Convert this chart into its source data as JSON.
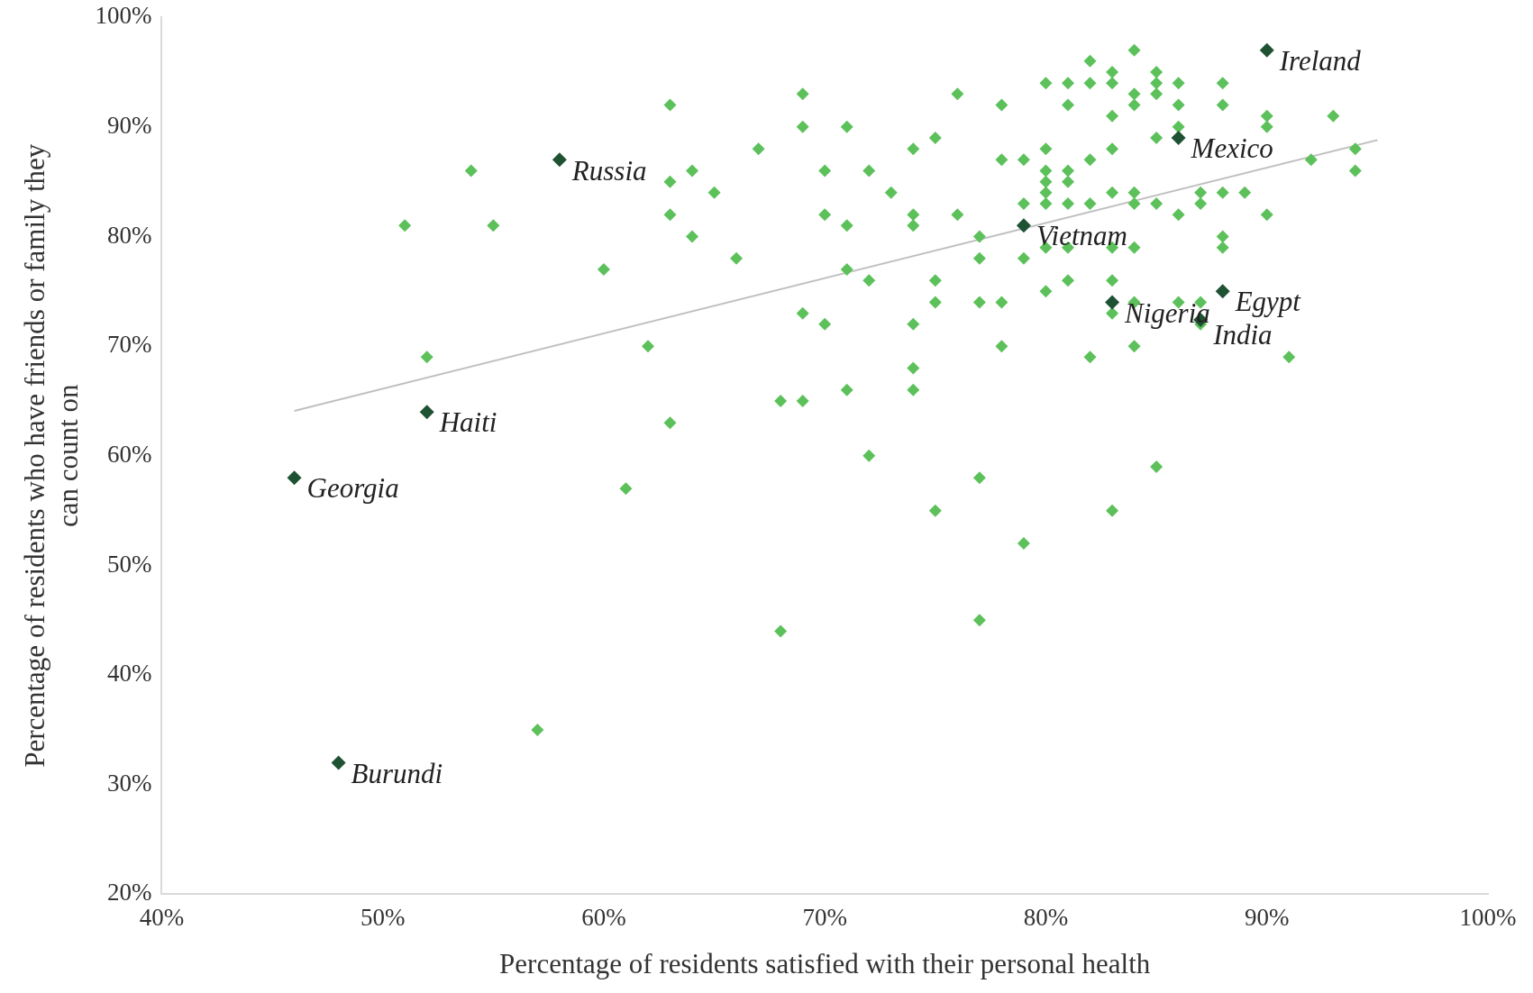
{
  "chart_data": {
    "type": "scatter",
    "xlabel": "Percentage of residents satisfied with their personal health",
    "ylabel": "Percentage of residents who have friends or family they can count on",
    "marker": "diamond",
    "xlim": [
      40,
      100
    ],
    "ylim": [
      20,
      100
    ],
    "xticks": [
      {
        "value": 40,
        "label": "40%"
      },
      {
        "value": 50,
        "label": "50%"
      },
      {
        "value": 60,
        "label": "60%"
      },
      {
        "value": 70,
        "label": "70%"
      },
      {
        "value": 80,
        "label": "80%"
      },
      {
        "value": 90,
        "label": "90%"
      },
      {
        "value": 100,
        "label": "100%"
      }
    ],
    "yticks": [
      {
        "value": 20,
        "label": "20%"
      },
      {
        "value": 30,
        "label": "30%"
      },
      {
        "value": 40,
        "label": "40%"
      },
      {
        "value": 50,
        "label": "50%"
      },
      {
        "value": 60,
        "label": "60%"
      },
      {
        "value": 70,
        "label": "70%"
      },
      {
        "value": 80,
        "label": "80%"
      },
      {
        "value": 90,
        "label": "90%"
      },
      {
        "value": 100,
        "label": "100%"
      }
    ],
    "series": [
      {
        "color": "#5cc15a",
        "x": [
          51,
          52,
          54,
          55,
          57,
          60,
          61,
          62,
          63,
          63,
          63,
          63,
          64,
          64,
          65,
          66,
          67,
          68,
          68,
          69,
          69,
          69,
          69,
          70,
          70,
          70,
          71,
          71,
          71,
          71,
          72,
          72,
          72,
          73,
          74,
          74,
          74,
          74,
          74,
          74,
          75,
          75,
          75,
          75,
          76,
          76,
          77,
          77,
          77,
          77,
          77,
          78,
          78,
          78,
          78,
          79,
          79,
          79,
          79,
          80,
          80,
          80,
          80,
          80,
          80,
          80,
          80,
          81,
          81,
          81,
          81,
          81,
          81,
          81,
          82,
          82,
          82,
          82,
          82,
          83,
          83,
          83,
          83,
          83,
          83,
          83,
          83,
          83,
          84,
          84,
          84,
          84,
          84,
          84,
          84,
          84,
          85,
          85,
          85,
          85,
          85,
          85,
          86,
          86,
          86,
          86,
          86,
          87,
          87,
          87,
          87,
          88,
          88,
          88,
          88,
          88,
          89,
          90,
          90,
          90,
          91,
          92,
          93,
          94,
          94
        ],
        "values": [
          81,
          69,
          86,
          81,
          35,
          77,
          57,
          70,
          92,
          85,
          82,
          63,
          86,
          80,
          84,
          78,
          88,
          65,
          44,
          93,
          90,
          73,
          65,
          86,
          82,
          72,
          90,
          81,
          77,
          66,
          86,
          76,
          60,
          84,
          88,
          82,
          81,
          72,
          68,
          66,
          89,
          76,
          74,
          55,
          93,
          82,
          80,
          78,
          74,
          58,
          45,
          92,
          87,
          74,
          70,
          87,
          83,
          78,
          52,
          94,
          88,
          86,
          85,
          84,
          83,
          79,
          75,
          94,
          92,
          86,
          85,
          83,
          79,
          76,
          96,
          94,
          87,
          83,
          69,
          95,
          94,
          91,
          88,
          84,
          79,
          76,
          73,
          55,
          97,
          93,
          92,
          84,
          83,
          79,
          74,
          70,
          95,
          94,
          93,
          89,
          83,
          59,
          94,
          92,
          90,
          82,
          74,
          84,
          83,
          74,
          72,
          94,
          92,
          84,
          80,
          79,
          84,
          91,
          90,
          82,
          69,
          87,
          91,
          88,
          86
        ]
      },
      {
        "color": "#1f5233",
        "x": [
          90,
          58,
          86,
          79,
          88,
          87,
          83,
          52,
          46,
          48
        ],
        "values": [
          97,
          87,
          89,
          81,
          75,
          72.4,
          74,
          64,
          58,
          32
        ]
      },
      {
        "type": "line",
        "marker": "none",
        "color": "#c0c0c0",
        "x": [
          46,
          95
        ],
        "values": [
          64.1,
          88.8
        ]
      }
    ],
    "annotations": [
      {
        "text": "Ireland",
        "x": 90,
        "y": 97
      },
      {
        "text": "Russia",
        "x": 58,
        "y": 87
      },
      {
        "text": "Mexico",
        "x": 86,
        "y": 89
      },
      {
        "text": "Vietnam",
        "x": 79,
        "y": 81
      },
      {
        "text": "Egypt",
        "x": 88,
        "y": 75
      },
      {
        "text": "India",
        "x": 87,
        "y": 72
      },
      {
        "text": "Nigeria",
        "x": 83,
        "y": 74
      },
      {
        "text": "Haiti",
        "x": 52,
        "y": 64
      },
      {
        "text": "Georgia",
        "x": 46,
        "y": 58
      },
      {
        "text": "Burundi",
        "x": 48,
        "y": 32
      }
    ]
  }
}
